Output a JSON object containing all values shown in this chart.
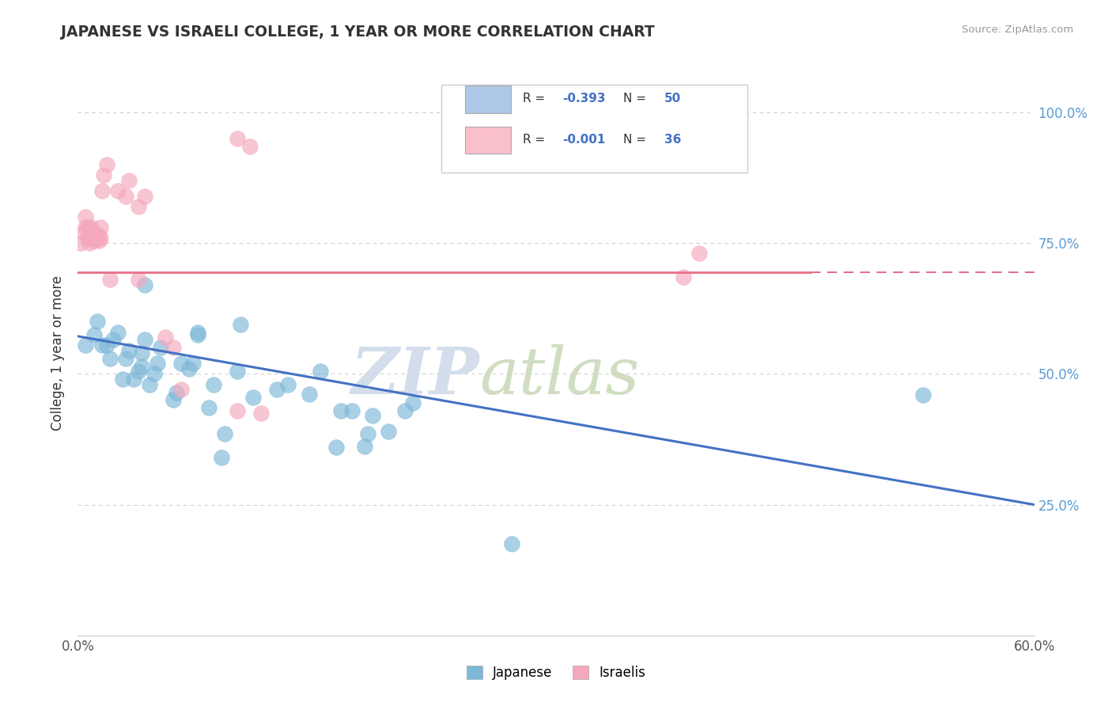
{
  "title": "JAPANESE VS ISRAELI COLLEGE, 1 YEAR OR MORE CORRELATION CHART",
  "source_text": "Source: ZipAtlas.com",
  "ylabel": "College, 1 year or more",
  "xlim": [
    0.0,
    0.6
  ],
  "ylim": [
    0.0,
    1.08
  ],
  "xtick_positions": [
    0.0,
    0.1,
    0.2,
    0.3,
    0.4,
    0.5,
    0.6
  ],
  "xticklabels": [
    "0.0%",
    "",
    "",
    "",
    "",
    "",
    "60.0%"
  ],
  "ytick_positions": [
    0.0,
    0.25,
    0.5,
    0.75,
    1.0
  ],
  "yticklabels_right": [
    "",
    "25.0%",
    "50.0%",
    "75.0%",
    "100.0%"
  ],
  "legend_top": [
    {
      "color": "#aec6e8",
      "label_r": "-0.393",
      "label_n": "50"
    },
    {
      "color": "#f9c0cc",
      "label_r": "-0.001",
      "label_n": "36"
    }
  ],
  "bottom_legend": [
    "Japanese",
    "Israelis"
  ],
  "blue_dot_color": "#7db8d8",
  "pink_dot_color": "#f5a8bc",
  "blue_line_color": "#4472c4",
  "pink_line_color": "#e8708a",
  "blue_regression": [
    0.0,
    0.572,
    0.6,
    0.25
  ],
  "pink_regression": [
    0.0,
    0.695,
    0.6,
    0.695
  ],
  "japanese_data": [
    [
      0.005,
      0.555
    ],
    [
      0.01,
      0.575
    ],
    [
      0.012,
      0.6
    ],
    [
      0.015,
      0.555
    ],
    [
      0.018,
      0.555
    ],
    [
      0.02,
      0.53
    ],
    [
      0.022,
      0.565
    ],
    [
      0.025,
      0.58
    ],
    [
      0.028,
      0.49
    ],
    [
      0.03,
      0.53
    ],
    [
      0.032,
      0.545
    ],
    [
      0.035,
      0.49
    ],
    [
      0.038,
      0.505
    ],
    [
      0.04,
      0.515
    ],
    [
      0.04,
      0.54
    ],
    [
      0.042,
      0.565
    ],
    [
      0.045,
      0.48
    ],
    [
      0.048,
      0.5
    ],
    [
      0.05,
      0.52
    ],
    [
      0.052,
      0.55
    ],
    [
      0.06,
      0.45
    ],
    [
      0.062,
      0.465
    ],
    [
      0.065,
      0.52
    ],
    [
      0.07,
      0.51
    ],
    [
      0.072,
      0.52
    ],
    [
      0.075,
      0.575
    ],
    [
      0.075,
      0.58
    ],
    [
      0.042,
      0.67
    ],
    [
      0.082,
      0.435
    ],
    [
      0.085,
      0.48
    ],
    [
      0.09,
      0.34
    ],
    [
      0.092,
      0.385
    ],
    [
      0.1,
      0.505
    ],
    [
      0.102,
      0.595
    ],
    [
      0.11,
      0.455
    ],
    [
      0.125,
      0.47
    ],
    [
      0.132,
      0.48
    ],
    [
      0.145,
      0.462
    ],
    [
      0.152,
      0.505
    ],
    [
      0.162,
      0.36
    ],
    [
      0.165,
      0.43
    ],
    [
      0.172,
      0.43
    ],
    [
      0.18,
      0.362
    ],
    [
      0.182,
      0.385
    ],
    [
      0.185,
      0.42
    ],
    [
      0.195,
      0.39
    ],
    [
      0.205,
      0.43
    ],
    [
      0.21,
      0.445
    ],
    [
      0.53,
      0.46
    ],
    [
      0.272,
      0.175
    ]
  ],
  "israeli_data": [
    [
      0.002,
      0.75
    ],
    [
      0.004,
      0.77
    ],
    [
      0.005,
      0.78
    ],
    [
      0.005,
      0.8
    ],
    [
      0.006,
      0.76
    ],
    [
      0.006,
      0.78
    ],
    [
      0.007,
      0.75
    ],
    [
      0.007,
      0.76
    ],
    [
      0.008,
      0.78
    ],
    [
      0.01,
      0.755
    ],
    [
      0.01,
      0.76
    ],
    [
      0.01,
      0.77
    ],
    [
      0.012,
      0.76
    ],
    [
      0.013,
      0.755
    ],
    [
      0.013,
      0.765
    ],
    [
      0.014,
      0.76
    ],
    [
      0.014,
      0.78
    ],
    [
      0.015,
      0.85
    ],
    [
      0.016,
      0.88
    ],
    [
      0.018,
      0.9
    ],
    [
      0.02,
      0.68
    ],
    [
      0.025,
      0.85
    ],
    [
      0.03,
      0.84
    ],
    [
      0.032,
      0.87
    ],
    [
      0.038,
      0.82
    ],
    [
      0.042,
      0.84
    ],
    [
      0.038,
      0.68
    ],
    [
      0.055,
      0.57
    ],
    [
      0.06,
      0.55
    ],
    [
      0.065,
      0.47
    ],
    [
      0.1,
      0.95
    ],
    [
      0.108,
      0.935
    ],
    [
      0.1,
      0.43
    ],
    [
      0.115,
      0.425
    ],
    [
      0.38,
      0.685
    ],
    [
      0.39,
      0.73
    ]
  ],
  "bg_color": "#ffffff",
  "grid_color": "#d0d0d0",
  "watermark_zip_color": "#d0dce8",
  "watermark_atlas_color": "#c8d8c0"
}
